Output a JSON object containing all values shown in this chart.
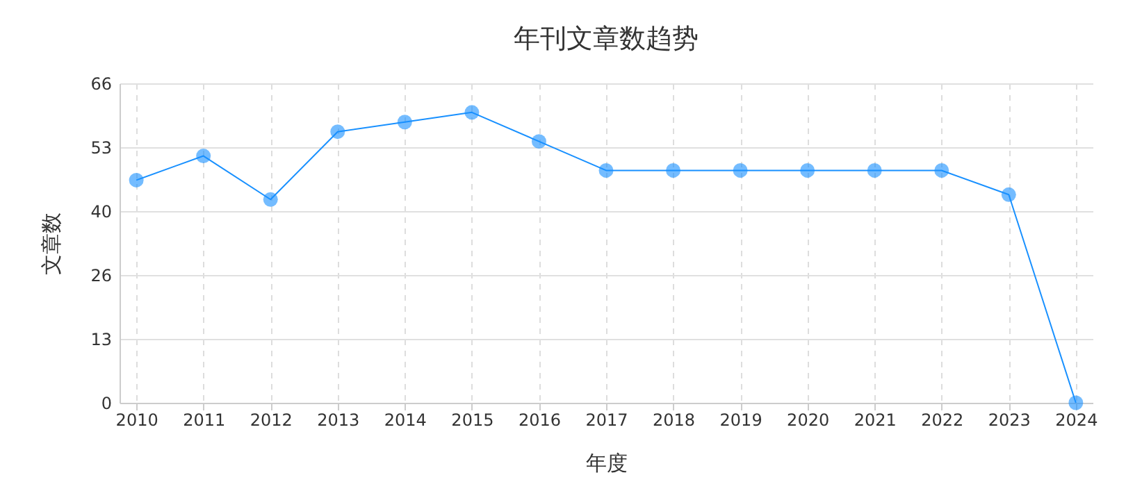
{
  "chart_data": {
    "type": "line",
    "title": "年刊文章数趋势",
    "xlabel": "年度",
    "ylabel": "文章数",
    "categories": [
      "2010",
      "2011",
      "2012",
      "2013",
      "2014",
      "2015",
      "2016",
      "2017",
      "2018",
      "2019",
      "2020",
      "2021",
      "2022",
      "2023",
      "2024"
    ],
    "series": [
      {
        "color": "#1890ff",
        "values": [
          46,
          51,
          42,
          56,
          58,
          60,
          54,
          48,
          48,
          48,
          48,
          48,
          48,
          43,
          0
        ]
      }
    ],
    "ylim": [
      0,
      66
    ],
    "yticks": [
      0,
      {
        "value": 13.2,
        "label": "13"
      },
      {
        "value": 26.4,
        "label": "26"
      },
      {
        "value": 39.6,
        "label": "40"
      },
      {
        "value": 52.8,
        "label": "53"
      },
      66
    ],
    "grid": true,
    "marker": "circle",
    "line_style": "solid"
  }
}
